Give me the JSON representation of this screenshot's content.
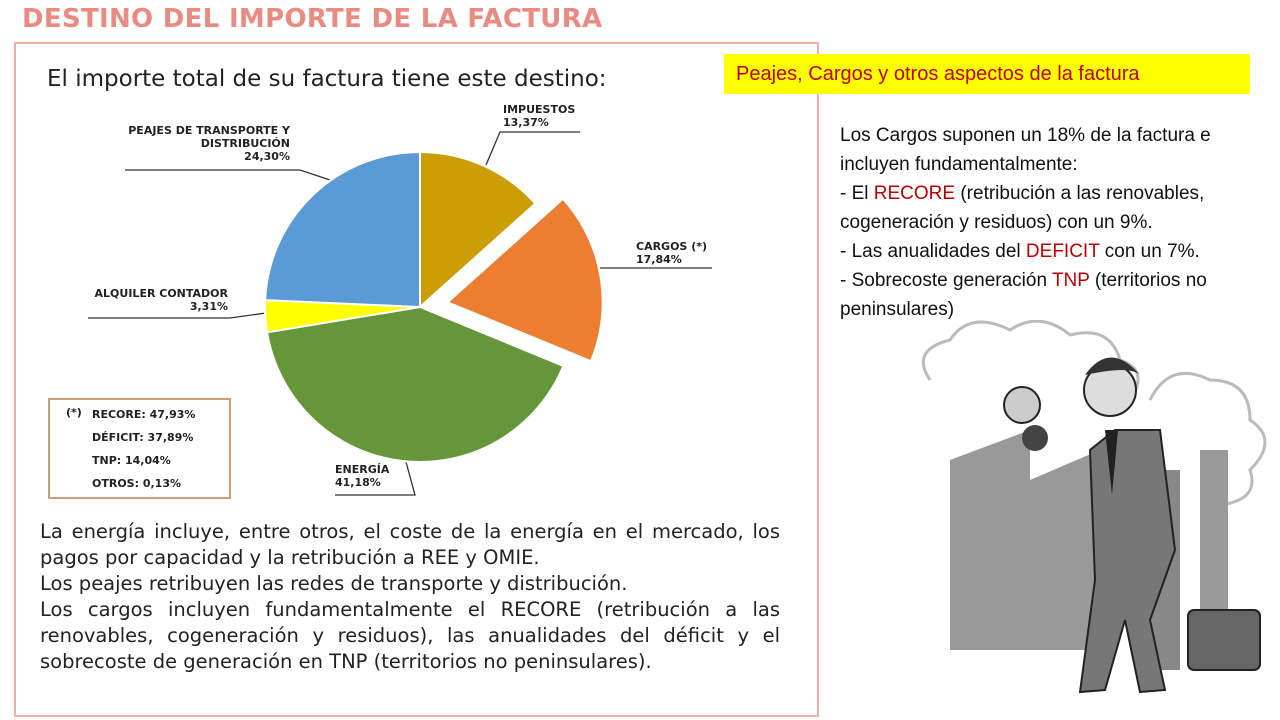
{
  "chart_data": {
    "type": "pie",
    "title": "DESTINO DEL IMPORTE DE LA FACTURA",
    "subtitle": "El importe total de su factura tiene este destino:",
    "categories": [
      "IMPUESTOS",
      "CARGOS (*)",
      "ENERGÍA",
      "ALQUILER CONTADOR",
      "PEAJES DE TRANSPORTE Y DISTRIBUCIÓN"
    ],
    "values": [
      13.37,
      17.84,
      41.18,
      3.31,
      24.3
    ],
    "value_labels": [
      "13,37%",
      "17,84%",
      "41,18%",
      "3,31%",
      "24,30%"
    ],
    "colors": [
      "#cc9e06",
      "#ed7d31",
      "#66963a",
      "#ffff00",
      "#5b9bd5"
    ],
    "explode": [
      false,
      true,
      false,
      false,
      false
    ],
    "footnote": {
      "marker": "(*)",
      "items": [
        "RECORE: 47,93%",
        "DÉFICIT: 37,89%",
        "TNP: 14,04%",
        "OTROS: 0,13%"
      ]
    }
  },
  "slide": {
    "notes": [
      "La energía incluye, entre otros, el coste de la energía en el mercado, los pagos por capacidad y la retribución a REE y OMIE.",
      "Los peajes retribuyen las redes de transporte y distribución.",
      "Los cargos incluyen fundamentalmente el RECORE (retribución a las renovables, cogeneración y residuos), las anualidades del déficit  y el sobrecoste de generación en TNP (territorios no peninsulares)."
    ],
    "heading": "Peajes, Cargos y otros aspectos de la factura",
    "intro": "Los Cargos suponen un 18% de la factura e incluyen fundamentalmente:",
    "items": [
      {
        "before": "- El ",
        "highlight": "RECORE",
        "after": " (retribución a las renovables, cogeneración y residuos) con un 9%."
      },
      {
        "before": "- Las anualidades del ",
        "highlight": "DEFICIT",
        "after": " con un 7%."
      },
      {
        "before": "- Sobrecoste generación ",
        "highlight": "TNP",
        "after": " (territorios no peninsulares)"
      }
    ]
  }
}
